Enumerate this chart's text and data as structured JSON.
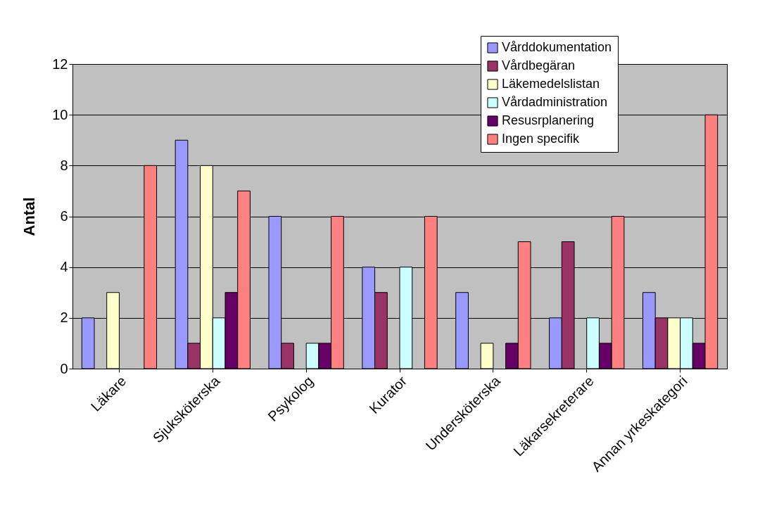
{
  "chart_data": {
    "type": "bar",
    "ylabel": "Antal",
    "categories": [
      "Läkare",
      "Sjuksköterska",
      "Psykolog",
      "Kurator",
      "Undersköterska",
      "Läkarsekreterare",
      "Annan yrkeskategori"
    ],
    "series": [
      {
        "name": "Vårddokumentation",
        "color": "#9999ff",
        "values": [
          2,
          9,
          6,
          4,
          3,
          2,
          3
        ]
      },
      {
        "name": "Vårdbegäran",
        "color": "#993366",
        "values": [
          0,
          1,
          1,
          3,
          0,
          5,
          2
        ]
      },
      {
        "name": "Läkemedelslistan",
        "color": "#ffffcc",
        "values": [
          3,
          8,
          0,
          0,
          1,
          0,
          2
        ]
      },
      {
        "name": "Vårdadministration",
        "color": "#ccffff",
        "values": [
          0,
          2,
          1,
          4,
          0,
          2,
          2
        ]
      },
      {
        "name": "Resusrplanering",
        "color": "#660066",
        "values": [
          0,
          3,
          1,
          0,
          1,
          1,
          1
        ]
      },
      {
        "name": "Ingen specifik",
        "color": "#ff8080",
        "values": [
          8,
          7,
          6,
          6,
          5,
          6,
          10
        ]
      }
    ],
    "ylim": [
      0,
      12
    ],
    "yticks": [
      0,
      2,
      4,
      6,
      8,
      10,
      12
    ],
    "grid": "y",
    "legend": "top right"
  }
}
